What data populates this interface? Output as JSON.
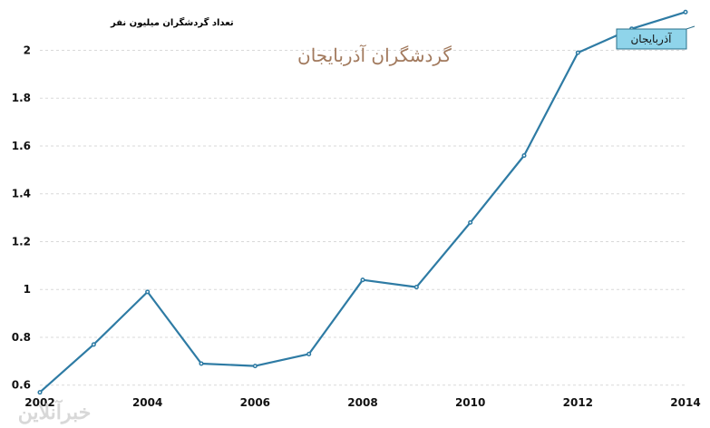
{
  "chart_data": {
    "type": "line",
    "title": "گردشگران آذربایجان",
    "ylabel": "تعداد گردشگران میلیون نفر",
    "xlabel": "",
    "x": [
      2002,
      2003,
      2004,
      2005,
      2006,
      2007,
      2008,
      2009,
      2010,
      2011,
      2012,
      2013,
      2014
    ],
    "x_ticks": [
      "2002",
      "2004",
      "2006",
      "2008",
      "2010",
      "2012",
      "2014"
    ],
    "y_ticks": [
      "0.6",
      "0.8",
      "1",
      "1.2",
      "1.4",
      "1.6",
      "1.8",
      "2"
    ],
    "ylim": [
      0.58,
      2.18
    ],
    "xlim": [
      2002,
      2014
    ],
    "grid": true,
    "legend_placement": "top-right",
    "series": [
      {
        "name": "آذربایجان",
        "color": "#2e7ba4",
        "values": [
          0.57,
          0.77,
          0.99,
          0.69,
          0.68,
          0.73,
          1.04,
          1.01,
          1.28,
          1.56,
          1.99,
          2.09,
          2.16
        ]
      }
    ]
  },
  "watermark": "خبرآنلاین"
}
